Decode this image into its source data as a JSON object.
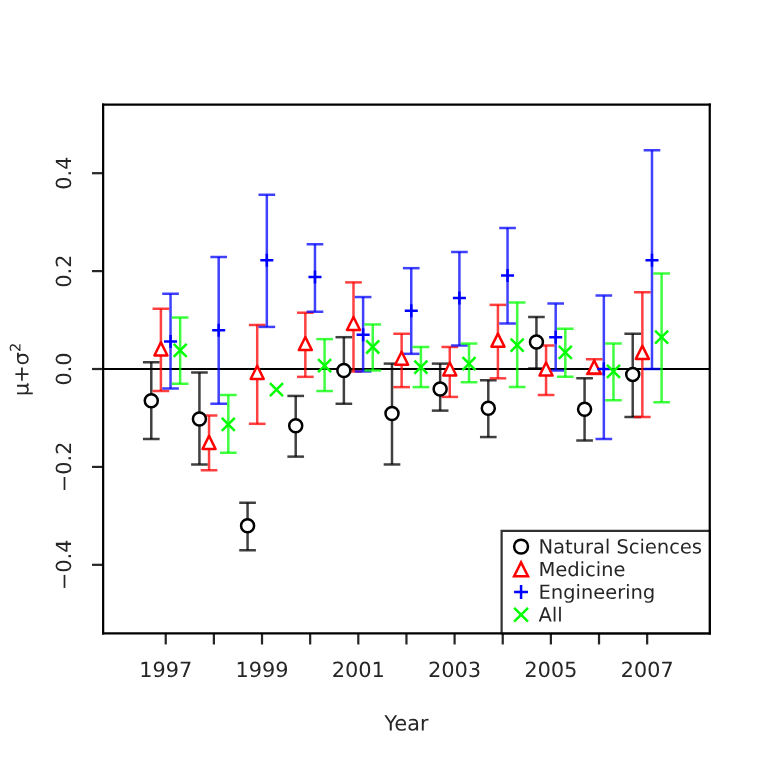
{
  "chart_data": {
    "type": "scatter",
    "xlabel": "Year",
    "ylabel": "μ+σ$^{2}$",
    "xlim": [
      1995.7,
      2008.3
    ],
    "ylim": [
      -0.54,
      0.54
    ],
    "xticks": [
      1997,
      {
        "value": 1998,
        "label": null
      },
      1999,
      {
        "value": 2000,
        "label": null
      },
      2001,
      {
        "value": 2002,
        "label": null
      },
      2003,
      {
        "value": 2004,
        "label": null
      },
      2005,
      {
        "value": 2006,
        "label": null
      },
      2007
    ],
    "yticks": [
      {
        "value": -0.4,
        "label": "−0.4"
      },
      {
        "value": -0.2,
        "label": "−0.2"
      },
      {
        "value": 0,
        "label": "0.0"
      },
      0.2,
      0.4
    ],
    "grid": false,
    "legend": "bottom right",
    "ref_lines": [
      {
        "axis": "y",
        "value": 0,
        "color": "#000000"
      }
    ],
    "series": [
      {
        "name": "Natural Sciences",
        "color": "#000000",
        "marker": "circle",
        "x": [
          1996.7,
          1997.7,
          1998.7,
          1999.7,
          2000.7,
          2001.7,
          2002.7,
          2003.7,
          2004.7,
          2005.7,
          2006.7
        ],
        "values": [
          -0.065,
          -0.102,
          -0.32,
          -0.116,
          -0.003,
          -0.091,
          -0.041,
          -0.08,
          0.055,
          -0.082,
          -0.011
        ],
        "errors": [
          [
            -0.143,
            0.014
          ],
          [
            -0.195,
            -0.007
          ],
          [
            -0.37,
            -0.273
          ],
          [
            -0.179,
            -0.055
          ],
          [
            -0.071,
            0.065
          ],
          [
            -0.195,
            0.011
          ],
          [
            -0.085,
            0.011
          ],
          [
            -0.139,
            -0.023
          ],
          [
            0.001,
            0.106
          ],
          [
            -0.146,
            -0.019
          ],
          [
            -0.098,
            0.072
          ]
        ]
      },
      {
        "name": "Medicine",
        "color": "#ff0000",
        "marker": "triangle",
        "x": [
          1996.9,
          1997.9,
          1998.9,
          1999.9,
          2000.9,
          2001.9,
          2002.9,
          2003.9,
          2004.9,
          2005.9,
          2006.9
        ],
        "values": [
          0.041,
          -0.15,
          -0.007,
          0.052,
          0.093,
          0.022,
          0.0,
          0.059,
          0.0,
          0.004,
          0.034
        ],
        "errors": [
          [
            -0.045,
            0.123
          ],
          [
            -0.207,
            -0.095
          ],
          [
            -0.112,
            0.09
          ],
          [
            -0.016,
            0.115
          ],
          [
            -0.005,
            0.177
          ],
          [
            -0.037,
            0.072
          ],
          [
            -0.057,
            0.045
          ],
          [
            -0.019,
            0.131
          ],
          [
            -0.053,
            0.048
          ],
          [
            -0.01,
            0.02
          ],
          [
            -0.098,
            0.157
          ]
        ]
      },
      {
        "name": "Engineering",
        "color": "#0000ff",
        "marker": "plus",
        "x": [
          1997.1,
          1998.1,
          1999.1,
          2000.1,
          2001.1,
          2002.1,
          2003.1,
          2004.1,
          2005.1,
          2006.1,
          2007.1
        ],
        "values": [
          0.056,
          0.079,
          0.222,
          0.188,
          0.07,
          0.119,
          0.145,
          0.191,
          0.065,
          0.0,
          0.222
        ],
        "errors": [
          [
            -0.04,
            0.154
          ],
          [
            -0.071,
            0.229
          ],
          [
            0.086,
            0.356
          ],
          [
            0.117,
            0.255
          ],
          [
            -0.005,
            0.147
          ],
          [
            0.031,
            0.206
          ],
          [
            0.048,
            0.239
          ],
          [
            0.093,
            0.288
          ],
          [
            -0.003,
            0.134
          ],
          [
            -0.143,
            0.15
          ],
          [
            0.0,
            0.447
          ]
        ]
      },
      {
        "name": "All",
        "color": "#00ff00",
        "marker": "cross",
        "x": [
          1997.3,
          1998.3,
          1999.3,
          2000.3,
          2001.3,
          2002.3,
          2003.3,
          2004.3,
          2005.3,
          2006.3,
          2007.3
        ],
        "values": [
          0.038,
          -0.113,
          -0.042,
          0.007,
          0.045,
          0.004,
          0.011,
          0.049,
          0.034,
          -0.005,
          0.065
        ],
        "errors": [
          [
            -0.03,
            0.105
          ],
          [
            -0.171,
            -0.053
          ],
          null,
          [
            -0.045,
            0.061
          ],
          [
            -0.003,
            0.091
          ],
          [
            -0.037,
            0.045
          ],
          [
            -0.027,
            0.052
          ],
          [
            -0.037,
            0.136
          ],
          [
            -0.016,
            0.082
          ],
          [
            -0.064,
            0.052
          ],
          [
            -0.068,
            0.195
          ]
        ]
      }
    ]
  }
}
